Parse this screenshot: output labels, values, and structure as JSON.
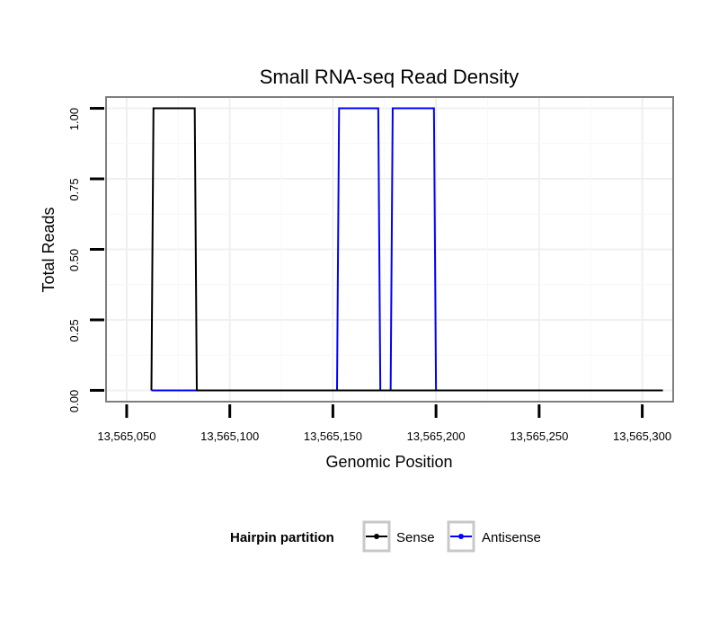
{
  "chart_data": {
    "type": "line",
    "title": "Small RNA-seq Read Density",
    "xlabel": "Genomic Position",
    "ylabel": "Total Reads",
    "xlim": [
      13565040,
      13565315
    ],
    "ylim": [
      -0.04,
      1.04
    ],
    "xticks": [
      13565050,
      13565100,
      13565150,
      13565200,
      13565250,
      13565300
    ],
    "xtick_labels": [
      "13,565,050",
      "13,565,100",
      "13,565,150",
      "13,565,200",
      "13,565,250",
      "13,565,300"
    ],
    "yticks": [
      0.0,
      0.25,
      0.5,
      0.75,
      1.0
    ],
    "ytick_labels": [
      "0.00",
      "0.25",
      "0.50",
      "0.75",
      "1.00"
    ],
    "grid": true,
    "legend": {
      "title": "Hairpin partition",
      "position": "bottom"
    },
    "series": [
      {
        "name": "Sense",
        "color": "#000000",
        "x": [
          13565062,
          13565063,
          13565083,
          13565084,
          13565310
        ],
        "y": [
          0,
          1,
          1,
          0,
          0
        ]
      },
      {
        "name": "Antisense",
        "color": "#0000ff",
        "x": [
          13565062,
          13565152,
          13565153,
          13565172,
          13565173,
          13565178,
          13565179,
          13565199,
          13565200,
          13565310
        ],
        "y": [
          0,
          0,
          1,
          1,
          0,
          0,
          1,
          1,
          0,
          0
        ]
      }
    ]
  }
}
